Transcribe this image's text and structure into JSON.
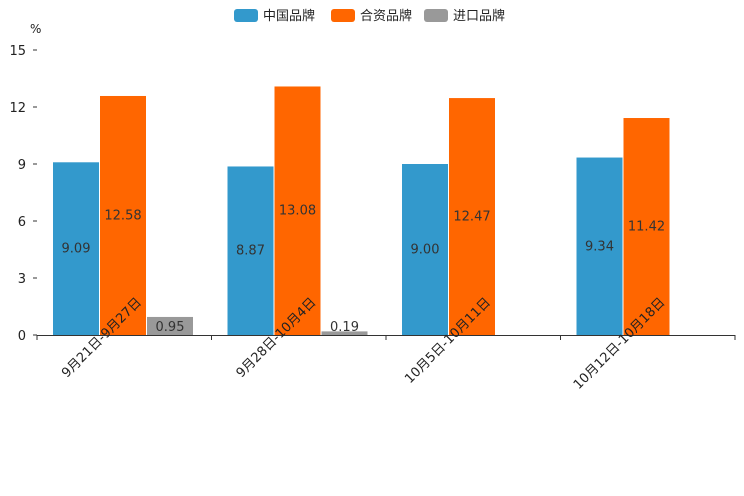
{
  "chart_data": {
    "type": "bar",
    "unit_label": "%",
    "ylim": [
      0,
      15
    ],
    "yticks": [
      0,
      3,
      6,
      9,
      12,
      15
    ],
    "categories": [
      "9月21日-9月27日",
      "9月28日-10月4日",
      "10月5日-10月11日",
      "10月12日-10月18日"
    ],
    "series": [
      {
        "name": "中国品牌",
        "color": "#3399cc",
        "values": [
          9.09,
          8.87,
          9.0,
          9.34
        ],
        "labels": [
          "9.09",
          "8.87",
          "9.00",
          "9.34"
        ]
      },
      {
        "name": "合资品牌",
        "color": "#ff6600",
        "values": [
          12.58,
          13.08,
          12.47,
          11.42
        ],
        "labels": [
          "12.58",
          "13.08",
          "12.47",
          "11.42"
        ]
      },
      {
        "name": "进口品牌",
        "color": "#999999",
        "values": [
          0.95,
          0.19,
          null,
          null
        ],
        "labels": [
          "0.95",
          "0.19",
          null,
          null
        ]
      }
    ],
    "legend_position": "top-center",
    "grid": false
  }
}
